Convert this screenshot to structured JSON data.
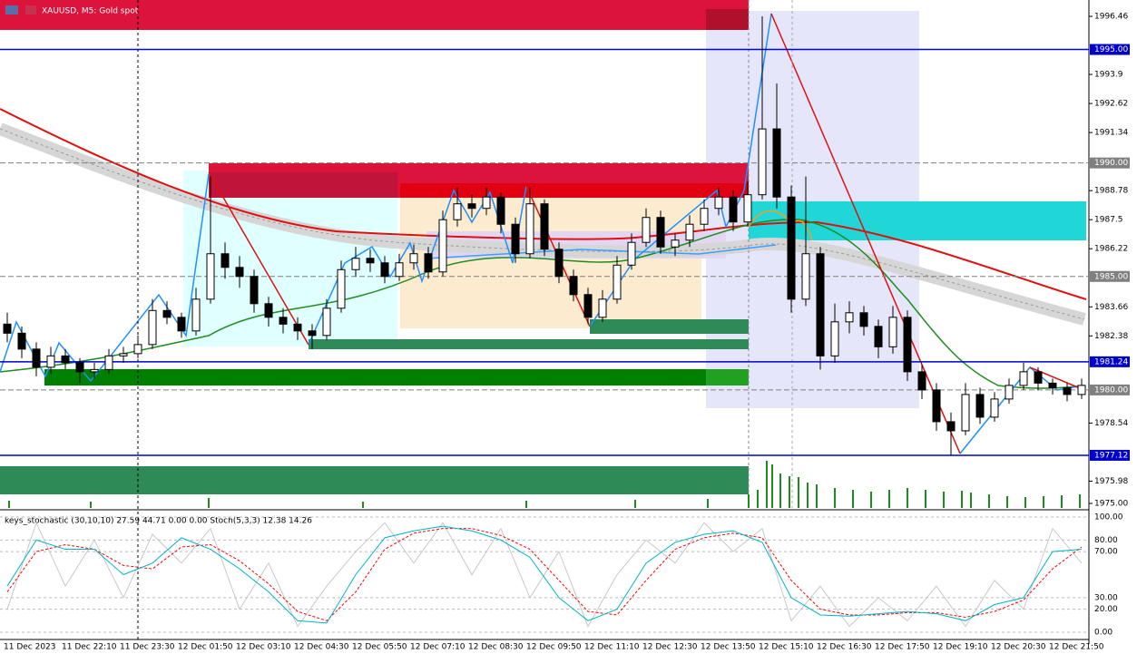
{
  "chart_data": [
    {
      "type": "candlestick",
      "title": "XAUUSD, M5:  Gold spot",
      "ylim": [
        1974.8,
        1997.18
      ],
      "yticks": [
        1996.46,
        1993.9,
        1992.62,
        1991.34,
        1988.78,
        1987.5,
        1986.22,
        1983.66,
        1982.38,
        1978.54,
        1975.98,
        {
          "value": 1975,
          "label": "1975.00"
        }
      ],
      "levels": [
        {
          "value": 1995,
          "label": "1995.00",
          "color": "#0000cd",
          "style": "solid"
        },
        {
          "value": 1990,
          "label": "1990.00",
          "color": "#808080",
          "style": "dashed"
        },
        {
          "value": 1985,
          "label": "1985.00",
          "color": "#808080",
          "style": "dashed"
        },
        {
          "value": 1981.24,
          "label": "1981.24",
          "color": "#0000cd",
          "style": "solid"
        },
        {
          "value": 1980,
          "label": "1980.00",
          "color": "#808080",
          "style": "dashed"
        },
        {
          "value": 1977.12,
          "label": "1977.12",
          "color": "#0000cd",
          "style": "solid"
        }
      ],
      "categories": [
        "11 Dec 2023",
        "11 Dec 22:10",
        "11 Dec 23:30",
        "12 Dec 01:50",
        "12 Dec 03:10",
        "12 Dec 04:30",
        "12 Dec 05:50",
        "12 Dec 07:10",
        "12 Dec 08:30",
        "12 Dec 09:50",
        "12 Dec 11:10",
        "12 Dec 12:30",
        "12 Dec 13:50",
        "12 Dec 15:10",
        "12 Dec 16:30",
        "12 Dec 17:50",
        "12 Dec 19:10",
        "12 Dec 20:30",
        "12 Dec 21:50"
      ],
      "candles": [
        [
          1982.9,
          1983.4,
          1982.1,
          1982.5
        ],
        [
          1982.5,
          1982.8,
          1981.4,
          1981.8
        ],
        [
          1981.8,
          1982.1,
          1980.6,
          1981.0
        ],
        [
          1981.0,
          1981.9,
          1980.7,
          1981.5
        ],
        [
          1981.5,
          1981.8,
          1980.9,
          1981.2
        ],
        [
          1981.2,
          1981.4,
          1980.3,
          1980.8
        ],
        [
          1980.8,
          1981.2,
          1980.5,
          1980.9
        ],
        [
          1980.9,
          1981.8,
          1980.7,
          1981.5
        ],
        [
          1981.5,
          1981.9,
          1981.2,
          1981.6
        ],
        [
          1981.6,
          1982.4,
          1981.4,
          1982.0
        ],
        [
          1982.0,
          1984.0,
          1981.8,
          1983.5
        ],
        [
          1983.5,
          1983.9,
          1982.9,
          1983.2
        ],
        [
          1983.2,
          1983.4,
          1982.3,
          1982.6
        ],
        [
          1982.6,
          1984.5,
          1982.4,
          1984.0
        ],
        [
          1984.0,
          1989.4,
          1983.8,
          1986.0
        ],
        [
          1986.0,
          1986.5,
          1984.9,
          1985.4
        ],
        [
          1985.4,
          1985.9,
          1984.5,
          1985.0
        ],
        [
          1985.0,
          1985.3,
          1983.4,
          1983.8
        ],
        [
          1983.8,
          1984.1,
          1982.8,
          1983.2
        ],
        [
          1983.2,
          1983.6,
          1982.5,
          1982.9
        ],
        [
          1982.9,
          1983.2,
          1982.2,
          1982.6
        ],
        [
          1982.6,
          1982.9,
          1981.8,
          1982.4
        ],
        [
          1982.4,
          1984.0,
          1982.2,
          1983.6
        ],
        [
          1983.6,
          1985.7,
          1983.4,
          1985.3
        ],
        [
          1985.3,
          1986.3,
          1985.0,
          1985.8
        ],
        [
          1985.8,
          1986.2,
          1985.2,
          1985.6
        ],
        [
          1985.6,
          1985.9,
          1984.7,
          1985.0
        ],
        [
          1985.0,
          1986.0,
          1984.8,
          1985.6
        ],
        [
          1985.6,
          1986.4,
          1985.3,
          1986.0
        ],
        [
          1986.0,
          1986.3,
          1984.9,
          1985.2
        ],
        [
          1985.2,
          1987.9,
          1985.0,
          1987.5
        ],
        [
          1987.5,
          1988.9,
          1987.2,
          1988.2
        ],
        [
          1988.2,
          1988.6,
          1987.6,
          1988.0
        ],
        [
          1988.0,
          1988.9,
          1987.7,
          1988.5
        ],
        [
          1988.5,
          1988.7,
          1986.9,
          1987.3
        ],
        [
          1987.3,
          1987.6,
          1985.6,
          1986.0
        ],
        [
          1986.0,
          1988.9,
          1985.8,
          1988.2
        ],
        [
          1988.2,
          1988.4,
          1985.9,
          1986.2
        ],
        [
          1986.2,
          1986.5,
          1984.7,
          1985.0
        ],
        [
          1985.0,
          1985.3,
          1983.9,
          1984.2
        ],
        [
          1984.2,
          1984.5,
          1982.9,
          1983.2
        ],
        [
          1983.2,
          1984.4,
          1983.0,
          1984.0
        ],
        [
          1984.0,
          1985.9,
          1983.8,
          1985.5
        ],
        [
          1985.5,
          1986.9,
          1985.3,
          1986.5
        ],
        [
          1986.5,
          1988.0,
          1986.3,
          1987.6
        ],
        [
          1987.6,
          1987.9,
          1986.0,
          1986.3
        ],
        [
          1986.3,
          1986.9,
          1985.9,
          1986.6
        ],
        [
          1986.6,
          1987.7,
          1986.3,
          1987.3
        ],
        [
          1987.3,
          1988.4,
          1987.0,
          1988.0
        ],
        [
          1988.0,
          1988.9,
          1987.7,
          1988.5
        ],
        [
          1988.5,
          1988.8,
          1987.0,
          1987.4
        ],
        [
          1987.4,
          1989.2,
          1987.2,
          1988.6
        ],
        [
          1988.6,
          1996.46,
          1988.4,
          1991.5
        ],
        [
          1991.5,
          1993.5,
          1988.0,
          1988.5
        ],
        [
          1988.5,
          1989.0,
          1983.4,
          1984.0
        ],
        [
          1984.0,
          1989.4,
          1983.7,
          1986.0
        ],
        [
          1986.0,
          1986.3,
          1980.9,
          1981.5
        ],
        [
          1981.5,
          1983.8,
          1981.2,
          1983.0
        ],
        [
          1983.0,
          1983.9,
          1982.5,
          1983.4
        ],
        [
          1983.4,
          1983.7,
          1982.4,
          1982.8
        ],
        [
          1982.8,
          1983.1,
          1981.4,
          1981.9
        ],
        [
          1981.9,
          1983.7,
          1981.6,
          1983.2
        ],
        [
          1983.2,
          1983.5,
          1980.4,
          1980.8
        ],
        [
          1980.8,
          1981.1,
          1979.6,
          1980.0
        ],
        [
          1980.0,
          1980.3,
          1978.2,
          1978.6
        ],
        [
          1978.6,
          1979.0,
          1977.12,
          1978.2
        ],
        [
          1978.2,
          1980.3,
          1978.0,
          1979.8
        ],
        [
          1979.8,
          1980.1,
          1978.5,
          1978.8
        ],
        [
          1978.8,
          1979.9,
          1978.6,
          1979.6
        ],
        [
          1979.6,
          1980.5,
          1979.4,
          1980.2
        ],
        [
          1980.2,
          1981.2,
          1980.0,
          1980.8
        ],
        [
          1980.8,
          1981.0,
          1980.0,
          1980.3
        ],
        [
          1980.3,
          1980.5,
          1979.8,
          1980.1
        ],
        [
          1980.1,
          1980.3,
          1979.5,
          1979.8
        ],
        [
          1979.8,
          1980.5,
          1979.6,
          1980.2
        ]
      ],
      "up_color": "#000000",
      "down_color": "#000000"
    },
    {
      "type": "line",
      "title": "keys_stochastic (30,10,10) 27.59 44.71 0.00 0.00 Stoch(5,3,3) 12.38 14.26",
      "ylim": [
        -6.3,
        105.5
      ],
      "yticks": [
        {
          "value": 100,
          "label": "100.00"
        },
        {
          "value": 80,
          "label": "80.00"
        },
        {
          "value": 70,
          "label": "70.00"
        },
        {
          "value": 30,
          "label": "30.00"
        },
        {
          "value": 20,
          "label": "20.00"
        },
        {
          "value": 0,
          "label": "0.00"
        }
      ],
      "series": [
        {
          "color": "#c8c8c8",
          "style": "solid",
          "values": [
            20,
            95,
            40,
            80,
            30,
            85,
            60,
            90,
            20,
            60,
            5,
            40,
            70,
            95,
            60,
            95,
            50,
            90,
            30,
            70,
            5,
            50,
            80,
            60,
            95,
            70,
            90,
            10,
            40,
            5,
            30,
            10,
            40,
            5,
            45,
            20,
            90,
            60
          ]
        },
        {
          "color": "#ff0000",
          "style": "dashed",
          "values": [
            35,
            70,
            76,
            72,
            58,
            55,
            74,
            76,
            62,
            42,
            18,
            10,
            35,
            72,
            86,
            90,
            90,
            84,
            72,
            45,
            18,
            15,
            45,
            72,
            82,
            86,
            82,
            45,
            20,
            15,
            15,
            17,
            17,
            13,
            18,
            28,
            55,
            74
          ]
        },
        {
          "color": "#00b4c8",
          "style": "solid",
          "values": [
            40,
            80,
            72,
            72,
            50,
            60,
            82,
            72,
            55,
            35,
            10,
            8,
            50,
            82,
            88,
            92,
            88,
            80,
            65,
            30,
            10,
            20,
            60,
            78,
            85,
            88,
            78,
            30,
            15,
            14,
            16,
            18,
            16,
            10,
            24,
            30,
            70,
            72
          ]
        }
      ]
    }
  ]
}
